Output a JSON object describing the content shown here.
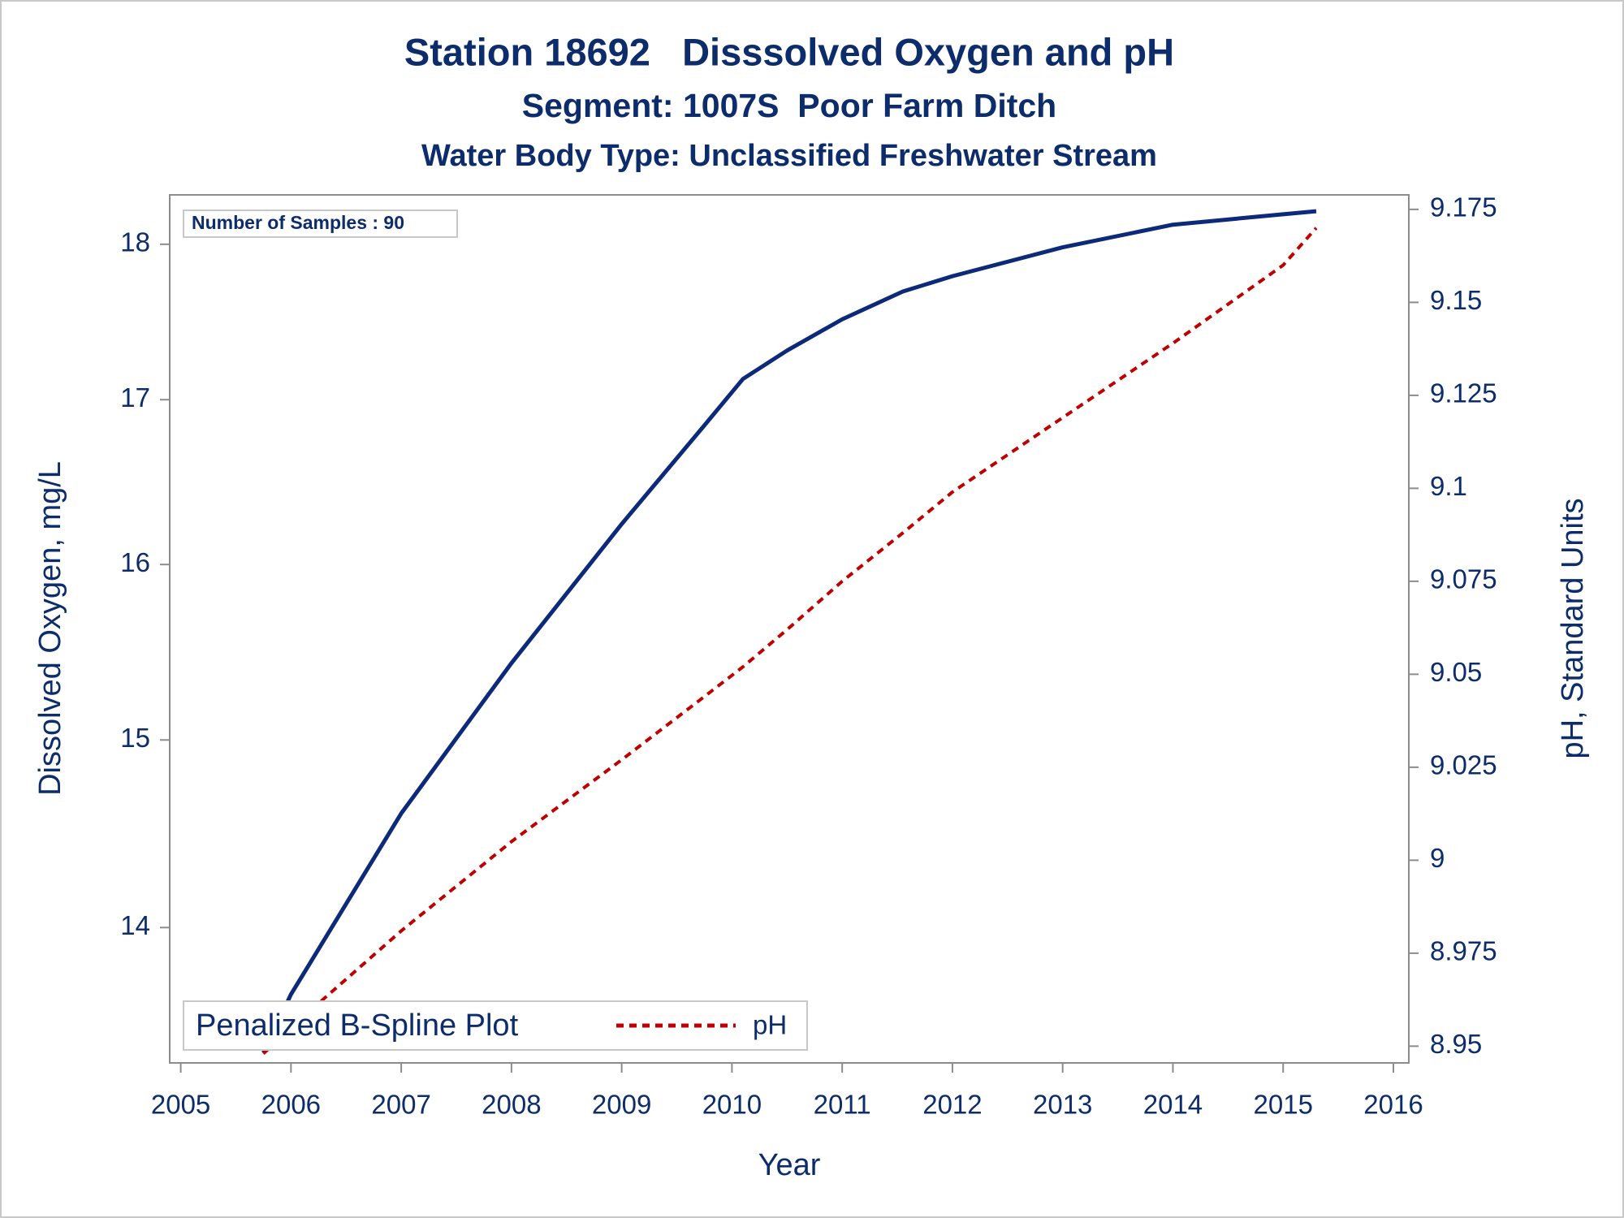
{
  "chart_data": {
    "type": "line",
    "title": "Station 18692   Disssolved Oxygen and pH",
    "subtitles": [
      "Segment: 1007S  Poor Farm Ditch",
      "Water Body Type: Unclassified Freshwater Stream"
    ],
    "annotation": "Number of Samples : 90",
    "x_label": "Year",
    "y_label": "Dissolved Oxygen, mg/L",
    "y2_label": "pH, Standard Units",
    "x": [
      2005.75,
      2006,
      2007,
      2008,
      2009,
      2009.75,
      2010.1,
      2010.5,
      2011,
      2011.55,
      2012,
      2013,
      2014,
      2015,
      2015.3
    ],
    "series": [
      {
        "color": "#0d2a7a",
        "line_style": "solid",
        "axis": "y",
        "values": [
          13.37,
          13.66,
          14.6,
          15.43,
          16.24,
          16.84,
          17.13,
          17.31,
          17.51,
          17.69,
          17.79,
          17.98,
          18.13,
          18.2,
          18.22
        ]
      },
      {
        "name": "pH",
        "color": "#c00000",
        "line_style": "dashed",
        "axis": "y2",
        "values": [
          8.948,
          8.955,
          8.981,
          9.005,
          9.027,
          9.044,
          9.052,
          9.062,
          9.075,
          9.088,
          9.099,
          9.119,
          9.139,
          9.16,
          9.17
        ]
      }
    ],
    "xlim": [
      2004.9,
      2016.14
    ],
    "xticks": [
      2005,
      2006,
      2007,
      2008,
      2009,
      2010,
      2011,
      2012,
      2013,
      2014,
      2015,
      2016
    ],
    "ylim": [
      13.32,
      18.33
    ],
    "ylog": true,
    "yticks": [
      14,
      15,
      16,
      17,
      18
    ],
    "y2lim": [
      8.9455,
      9.1789
    ],
    "y2ticks": [
      8.95,
      8.975,
      9,
      9.025,
      9.05,
      9.075,
      9.1,
      9.125,
      9.15,
      9.175
    ],
    "legend_title": "Penalized B-Spline Plot",
    "legend_position": "lower left",
    "grid": false
  }
}
